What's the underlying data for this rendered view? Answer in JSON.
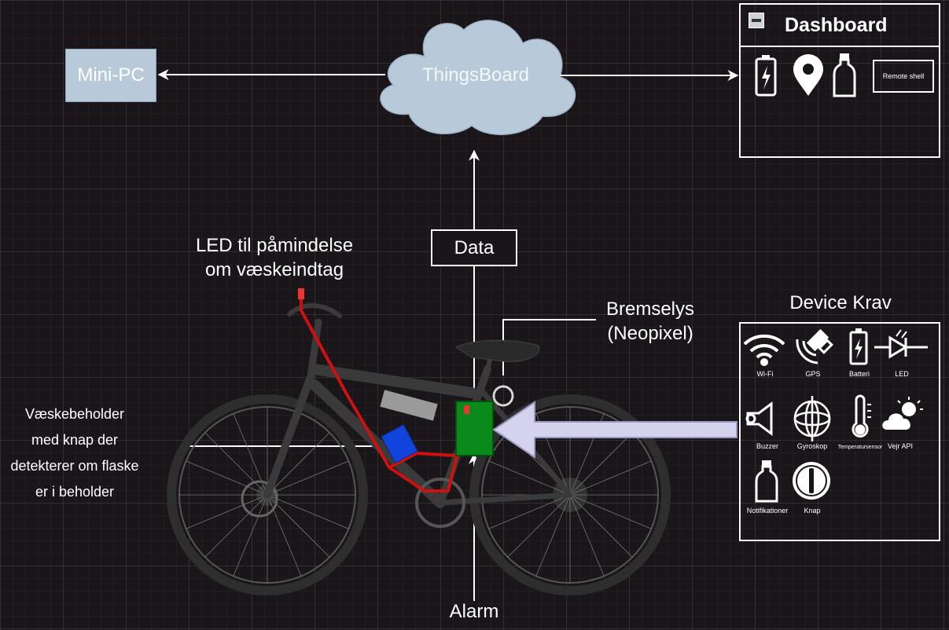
{
  "nodes": {
    "minipc": "Mini-PC",
    "thingsboard": "ThingsBoard",
    "dashboard_title": "Dashboard",
    "remote_shell": "Remote shell",
    "data": "Data",
    "alarm": "Alarm",
    "led_label_1": "LED til påmindelse",
    "led_label_2": "om væskeindtag",
    "brake_label_1": "Bremselys",
    "brake_label_2": "(Neopixel)",
    "holder_label_1": "Væskebeholder",
    "holder_label_2": "med knap der",
    "holder_label_3": "detekterer om flaske",
    "holder_label_4": "er i beholder",
    "device_title": "Device Krav"
  },
  "device_items": [
    {
      "label": "Wi-Fi",
      "icon": "wifi-icon"
    },
    {
      "label": "GPS",
      "icon": "satellite-icon"
    },
    {
      "label": "Batteri",
      "icon": "battery-icon"
    },
    {
      "label": "LED",
      "icon": "led-diode-icon"
    },
    {
      "label": "Buzzer",
      "icon": "buzzer-icon"
    },
    {
      "label": "Gyroskop",
      "icon": "gyroscope-icon"
    },
    {
      "label": "Temperatursensor",
      "icon": "thermometer-icon"
    },
    {
      "label": "Vejr API",
      "icon": "weather-icon"
    },
    {
      "label": "Notifikationer",
      "icon": "bottle-icon"
    },
    {
      "label": "Knap",
      "icon": "button-icon"
    }
  ],
  "dashboard_icons": [
    "battery-icon",
    "location-pin-icon",
    "bottle-icon"
  ],
  "colors": {
    "background": "#1a1519",
    "cloud": "#b8c9d9",
    "wire": "#cc1111",
    "controller": "#0a8a1a",
    "holder": "#1144dd",
    "big_arrow": "#d4d2ec"
  }
}
